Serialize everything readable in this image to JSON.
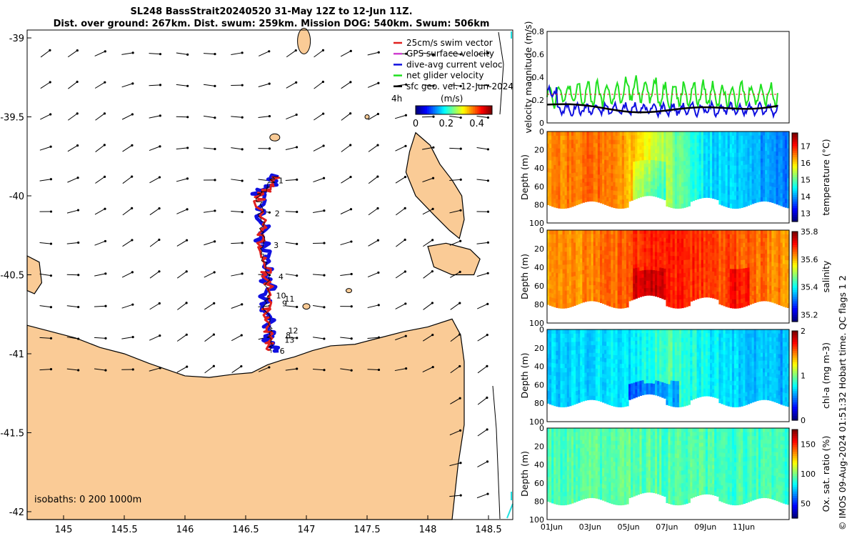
{
  "title": {
    "line1": "SL248 BassStrait20240520 31-May 12Z to 12-Jun 11Z.",
    "line2": "Dist. over ground: 267km. Dist. swum: 259km. Mission DOG: 540km. Swum: 506km"
  },
  "credit": "© IMOS 09-Aug-2024 01:51:32 Hobart time. QC flags 1  2",
  "colors": {
    "land": "#FACB96",
    "swim": "#E0201E",
    "gps": "#D040D0",
    "dive": "#1010E0",
    "net": "#20E020",
    "geo": "#000000",
    "coast": "#000000",
    "isobath": "#20E0E0"
  },
  "chart_data": [
    {
      "type": "map",
      "xlim": [
        144.7,
        148.7
      ],
      "ylim": [
        -42.05,
        -38.95
      ],
      "x_ticks": [
        "145",
        "145.5",
        "146",
        "146.5",
        "147",
        "147.5",
        "148",
        "148.5"
      ],
      "y_ticks": [
        "-39",
        "-39.5",
        "-40",
        "-40.5",
        "-41",
        "-41.5",
        "-42"
      ],
      "legend": {
        "items": [
          "25cm/s swim vector",
          "GPS surface velocity",
          "dive-avg current veloc",
          "net glider velocity",
          "sfc geo. vel. 12-Jun-2024"
        ],
        "extra": "4h"
      },
      "colorbar": {
        "label": "(m/s)",
        "ticks": [
          "0",
          "0.2",
          "0.4"
        ],
        "range": [
          0,
          0.5
        ]
      },
      "isobaths_label": "isobaths: 0   200  1000m",
      "track_labels": [
        "1",
        "2",
        "3",
        "4",
        "10",
        "11",
        "9",
        "12",
        "8",
        "13",
        "6"
      ],
      "track": [
        [
          146.75,
          -39.87
        ],
        [
          146.68,
          -39.95
        ],
        [
          146.61,
          -39.99
        ],
        [
          146.62,
          -40.1
        ],
        [
          146.64,
          -40.22
        ],
        [
          146.63,
          -40.33
        ],
        [
          146.66,
          -40.46
        ],
        [
          146.69,
          -40.58
        ],
        [
          146.67,
          -40.7
        ],
        [
          146.69,
          -40.82
        ],
        [
          146.7,
          -40.92
        ],
        [
          146.72,
          -41.0
        ]
      ]
    },
    {
      "type": "line",
      "ylabel": "velocity magnitude (m/s)",
      "ylim": [
        0,
        0.8
      ],
      "y_ticks": [
        "0",
        "0.2",
        "0.4",
        "0.6",
        "0.8"
      ],
      "x_days": [
        0,
        12
      ],
      "series": [
        {
          "id": "net",
          "color": "#20E020",
          "mean": 0.25,
          "amp": 0.09
        },
        {
          "id": "dive",
          "color": "#1010E0",
          "mean": 0.12,
          "amp": 0.04
        },
        {
          "id": "geo",
          "color": "#000000",
          "mean": 0.13,
          "amp": 0.02
        },
        {
          "id": "swim",
          "color": "#E0201E",
          "mean": 0.25,
          "amp": 0.0
        }
      ]
    },
    {
      "type": "heatmap",
      "ylabel": "Depth (m)",
      "depth_ticks": [
        "0",
        "20",
        "40",
        "60",
        "80",
        "100"
      ],
      "cbar_label": "temperature (°C)",
      "cbar_ticks": [
        "17",
        "16",
        "15",
        "14",
        "13"
      ],
      "cbar_range": [
        12.5,
        17.8
      ]
    },
    {
      "type": "heatmap",
      "ylabel": "Depth (m)",
      "depth_ticks": [
        "0",
        "20",
        "40",
        "60",
        "80",
        "100"
      ],
      "cbar_label": "salinity",
      "cbar_ticks": [
        "35.8",
        "35.6",
        "35.4",
        "35.2"
      ],
      "cbar_range": [
        35.15,
        35.8
      ]
    },
    {
      "type": "heatmap",
      "ylabel": "Depth (m)",
      "depth_ticks": [
        "0",
        "20",
        "40",
        "60",
        "80",
        "100"
      ],
      "cbar_label": "chl-a (mg m-3)",
      "cbar_ticks": [
        "2",
        "1",
        "0"
      ],
      "cbar_range": [
        0,
        2
      ]
    },
    {
      "type": "heatmap",
      "ylabel": "Depth (m)",
      "depth_ticks": [
        "0",
        "20",
        "40",
        "60",
        "80",
        "100"
      ],
      "cbar_label": "Ox. sat. ratio (%)",
      "cbar_ticks": [
        "150",
        "100",
        "50"
      ],
      "cbar_range": [
        25,
        175
      ],
      "x_ticks": [
        "01Jun",
        "03Jun",
        "05Jun",
        "07Jun",
        "09Jun",
        "11Jun"
      ]
    }
  ]
}
